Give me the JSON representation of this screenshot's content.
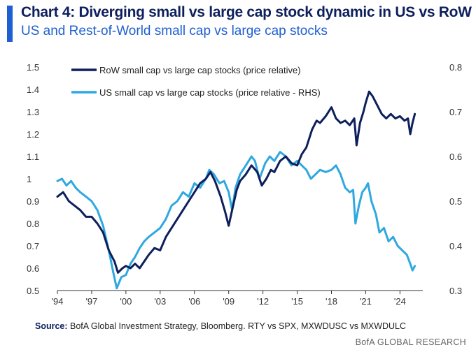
{
  "header": {
    "title": "Chart 4: Diverging small vs large cap stock dynamic in US vs RoW",
    "subtitle": "US and Rest-of-World small cap vs large cap stocks"
  },
  "footer": {
    "source_label": "Source:",
    "source_text": " BofA Global Investment Strategy, Bloomberg. RTY vs SPX, MXWDUSC vs MXWDULC",
    "brand": "BofA GLOBAL RESEARCH"
  },
  "colors": {
    "row": "#0d1f5c",
    "us": "#2fa8e0",
    "accent": "#1f5fd1"
  },
  "chart_data": {
    "type": "line",
    "x_ticks": [
      "'94",
      "'97",
      "'00",
      "'03",
      "'06",
      "'09",
      "'12",
      "'15",
      "'18",
      "'21",
      "'24"
    ],
    "x_range": [
      1994,
      2026
    ],
    "y_left": {
      "range": [
        0.5,
        1.5
      ],
      "ticks": [
        "0.5",
        "0.6",
        "0.7",
        "0.8",
        "0.9",
        "1",
        "1.1",
        "1.2",
        "1.3",
        "1.4",
        "1.5"
      ]
    },
    "y_right": {
      "range": [
        0.3,
        0.8
      ],
      "ticks": [
        "0.3",
        "0.4",
        "0.5",
        "0.6",
        "0.7",
        "0.8"
      ]
    },
    "legend": "top-left",
    "series": [
      {
        "name": "RoW small cap vs large cap stocks (price relative)",
        "axis": "left",
        "color": "#0d1f5c",
        "points": [
          [
            1994.0,
            0.92
          ],
          [
            1994.5,
            0.94
          ],
          [
            1995.0,
            0.9
          ],
          [
            1995.5,
            0.88
          ],
          [
            1996.0,
            0.86
          ],
          [
            1996.5,
            0.83
          ],
          [
            1997.0,
            0.83
          ],
          [
            1997.5,
            0.8
          ],
          [
            1998.0,
            0.76
          ],
          [
            1998.5,
            0.68
          ],
          [
            1999.0,
            0.63
          ],
          [
            1999.3,
            0.58
          ],
          [
            1999.7,
            0.6
          ],
          [
            2000.0,
            0.61
          ],
          [
            2000.4,
            0.6
          ],
          [
            2000.8,
            0.62
          ],
          [
            2001.2,
            0.6
          ],
          [
            2001.6,
            0.63
          ],
          [
            2002.0,
            0.66
          ],
          [
            2002.5,
            0.69
          ],
          [
            2003.0,
            0.68
          ],
          [
            2003.5,
            0.74
          ],
          [
            2004.0,
            0.78
          ],
          [
            2004.5,
            0.82
          ],
          [
            2005.0,
            0.86
          ],
          [
            2005.5,
            0.9
          ],
          [
            2006.0,
            0.94
          ],
          [
            2006.5,
            0.98
          ],
          [
            2007.0,
            1.0
          ],
          [
            2007.4,
            1.03
          ],
          [
            2007.8,
            0.99
          ],
          [
            2008.3,
            0.92
          ],
          [
            2008.7,
            0.85
          ],
          [
            2009.0,
            0.79
          ],
          [
            2009.3,
            0.86
          ],
          [
            2009.7,
            0.95
          ],
          [
            2010.0,
            0.99
          ],
          [
            2010.5,
            1.02
          ],
          [
            2011.0,
            1.06
          ],
          [
            2011.5,
            1.03
          ],
          [
            2011.9,
            0.97
          ],
          [
            2012.3,
            1.0
          ],
          [
            2012.7,
            1.04
          ],
          [
            2013.0,
            1.03
          ],
          [
            2013.5,
            1.08
          ],
          [
            2014.0,
            1.1
          ],
          [
            2014.5,
            1.07
          ],
          [
            2015.0,
            1.06
          ],
          [
            2015.4,
            1.11
          ],
          [
            2015.8,
            1.14
          ],
          [
            2016.3,
            1.22
          ],
          [
            2016.7,
            1.26
          ],
          [
            2017.0,
            1.25
          ],
          [
            2017.5,
            1.28
          ],
          [
            2018.0,
            1.32
          ],
          [
            2018.4,
            1.27
          ],
          [
            2018.8,
            1.25
          ],
          [
            2019.2,
            1.26
          ],
          [
            2019.6,
            1.24
          ],
          [
            2020.0,
            1.27
          ],
          [
            2020.2,
            1.15
          ],
          [
            2020.5,
            1.25
          ],
          [
            2020.8,
            1.3
          ],
          [
            2021.0,
            1.34
          ],
          [
            2021.3,
            1.39
          ],
          [
            2021.6,
            1.37
          ],
          [
            2022.0,
            1.33
          ],
          [
            2022.4,
            1.29
          ],
          [
            2022.8,
            1.27
          ],
          [
            2023.2,
            1.29
          ],
          [
            2023.6,
            1.27
          ],
          [
            2024.0,
            1.28
          ],
          [
            2024.4,
            1.26
          ],
          [
            2024.7,
            1.27
          ],
          [
            2024.9,
            1.2
          ],
          [
            2025.1,
            1.25
          ],
          [
            2025.3,
            1.29
          ]
        ]
      },
      {
        "name": "US small cap vs large cap stocks (price relative - RHS)",
        "axis": "right",
        "color": "#2fa8e0",
        "points": [
          [
            1994.0,
            0.545
          ],
          [
            1994.4,
            0.55
          ],
          [
            1994.8,
            0.535
          ],
          [
            1995.2,
            0.545
          ],
          [
            1995.6,
            0.53
          ],
          [
            1996.0,
            0.52
          ],
          [
            1996.5,
            0.51
          ],
          [
            1997.0,
            0.5
          ],
          [
            1997.5,
            0.48
          ],
          [
            1998.0,
            0.445
          ],
          [
            1998.5,
            0.39
          ],
          [
            1998.9,
            0.34
          ],
          [
            1999.2,
            0.305
          ],
          [
            1999.6,
            0.33
          ],
          [
            2000.0,
            0.335
          ],
          [
            2000.4,
            0.36
          ],
          [
            2000.8,
            0.375
          ],
          [
            2001.2,
            0.395
          ],
          [
            2001.6,
            0.41
          ],
          [
            2002.0,
            0.42
          ],
          [
            2002.5,
            0.43
          ],
          [
            2003.0,
            0.44
          ],
          [
            2003.5,
            0.46
          ],
          [
            2004.0,
            0.49
          ],
          [
            2004.5,
            0.5
          ],
          [
            2005.0,
            0.52
          ],
          [
            2005.5,
            0.51
          ],
          [
            2006.0,
            0.54
          ],
          [
            2006.5,
            0.53
          ],
          [
            2007.0,
            0.55
          ],
          [
            2007.3,
            0.57
          ],
          [
            2007.7,
            0.56
          ],
          [
            2008.2,
            0.54
          ],
          [
            2008.6,
            0.545
          ],
          [
            2009.0,
            0.52
          ],
          [
            2009.3,
            0.48
          ],
          [
            2009.6,
            0.53
          ],
          [
            2010.0,
            0.56
          ],
          [
            2010.5,
            0.58
          ],
          [
            2011.0,
            0.6
          ],
          [
            2011.3,
            0.59
          ],
          [
            2011.7,
            0.55
          ],
          [
            2012.2,
            0.585
          ],
          [
            2012.6,
            0.6
          ],
          [
            2013.0,
            0.59
          ],
          [
            2013.5,
            0.61
          ],
          [
            2014.0,
            0.6
          ],
          [
            2014.5,
            0.58
          ],
          [
            2015.0,
            0.59
          ],
          [
            2015.4,
            0.58
          ],
          [
            2015.8,
            0.57
          ],
          [
            2016.2,
            0.55
          ],
          [
            2016.6,
            0.56
          ],
          [
            2017.0,
            0.57
          ],
          [
            2017.5,
            0.565
          ],
          [
            2018.0,
            0.57
          ],
          [
            2018.4,
            0.58
          ],
          [
            2018.8,
            0.56
          ],
          [
            2019.2,
            0.53
          ],
          [
            2019.6,
            0.52
          ],
          [
            2019.9,
            0.525
          ],
          [
            2020.1,
            0.45
          ],
          [
            2020.4,
            0.49
          ],
          [
            2020.7,
            0.52
          ],
          [
            2021.0,
            0.53
          ],
          [
            2021.2,
            0.54
          ],
          [
            2021.5,
            0.5
          ],
          [
            2021.9,
            0.47
          ],
          [
            2022.2,
            0.43
          ],
          [
            2022.6,
            0.44
          ],
          [
            2023.0,
            0.41
          ],
          [
            2023.4,
            0.42
          ],
          [
            2023.8,
            0.4
          ],
          [
            2024.2,
            0.39
          ],
          [
            2024.6,
            0.38
          ],
          [
            2024.9,
            0.36
          ],
          [
            2025.1,
            0.345
          ],
          [
            2025.3,
            0.355
          ]
        ]
      }
    ]
  }
}
